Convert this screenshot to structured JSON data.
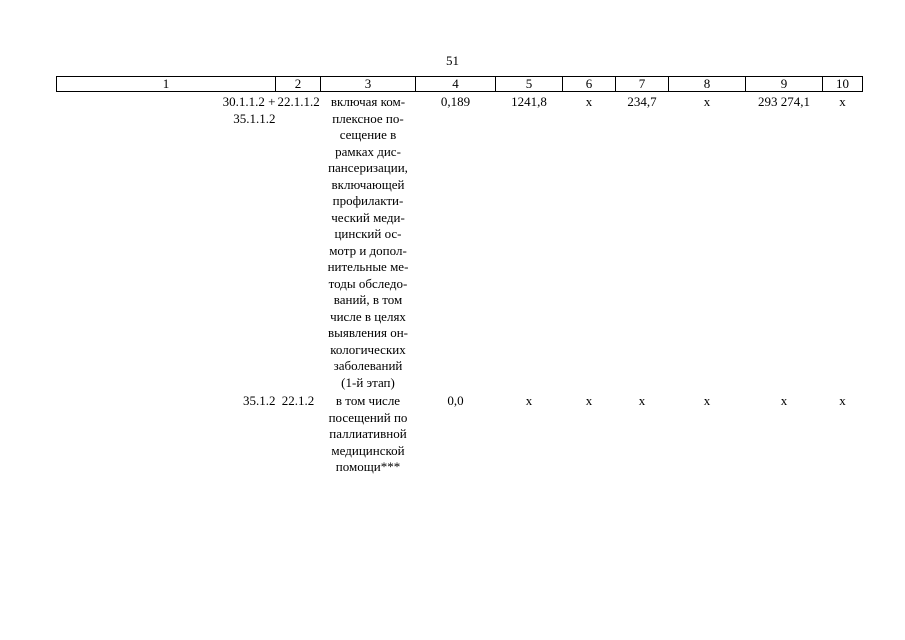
{
  "page_number": "51",
  "table": {
    "header": [
      "1",
      "2",
      "3",
      "4",
      "5",
      "6",
      "7",
      "8",
      "9",
      "10"
    ],
    "rows": [
      [
        "30.1.1.2 +\n35.1.1.2",
        "22.1.1.2",
        "включая ком-\nплексное по-\nсещение в\nрамках дис-\nпансеризации,\nвключающей\nпрофилакти-\nческий меди-\nцинский ос-\nмотр и допол-\nнительные ме-\nтоды обследо-\nваний, в том\nчисле в целях\nвыявления он-\nкологических\nзаболеваний\n(1-й этап)",
        "0,189",
        "1241,8",
        "х",
        "234,7",
        "х",
        "293 274,1",
        "х"
      ],
      [
        "35.1.2",
        "22.1.2",
        "в том числе\nпосещений по\nпаллиативной\nмедицинской\nпомощи***",
        "0,0",
        "х",
        "х",
        "х",
        "х",
        "х",
        "х"
      ]
    ]
  }
}
